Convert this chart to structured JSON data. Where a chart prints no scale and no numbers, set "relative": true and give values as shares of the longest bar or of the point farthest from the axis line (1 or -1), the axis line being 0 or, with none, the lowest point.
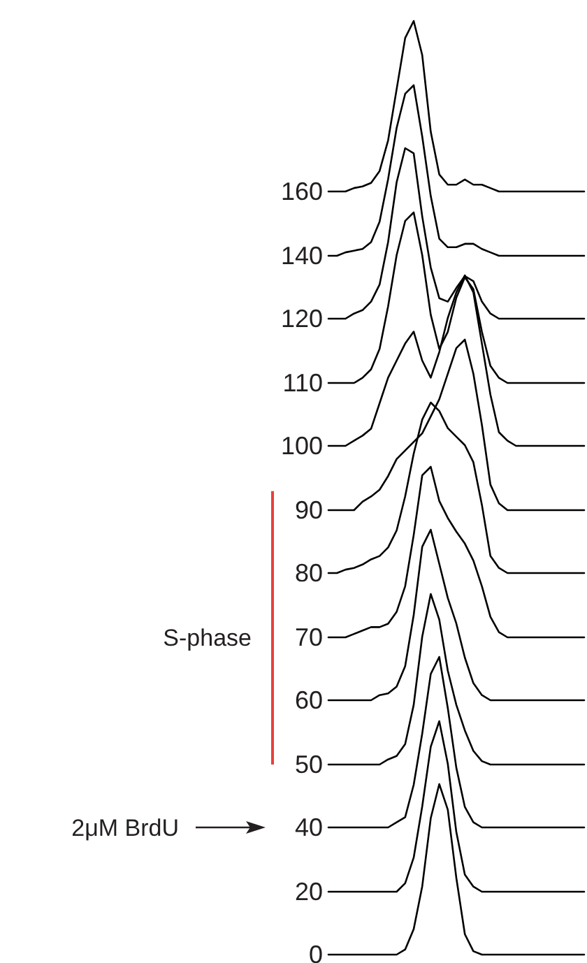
{
  "chart_data": [
    {
      "type": "line",
      "relative": true,
      "color": "#000000",
      "ylabel": "160",
      "categories": [
        null,
        null,
        null,
        null,
        null,
        null,
        null,
        null,
        null,
        null,
        null,
        null,
        null,
        null,
        null,
        null,
        null,
        null,
        null,
        null,
        null,
        null,
        null,
        null,
        null,
        null,
        null,
        null,
        null,
        null,
        null
      ],
      "values": [
        0,
        0,
        0,
        0.02,
        0.03,
        0.05,
        0.12,
        0.3,
        0.6,
        0.9,
        1,
        0.8,
        0.35,
        0.1,
        0.04,
        0.04,
        0.07,
        0.04,
        0.04,
        0.02,
        0,
        0,
        0,
        0,
        0,
        0,
        0,
        0,
        0,
        0,
        0
      ]
    },
    {
      "type": "line",
      "relative": true,
      "color": "#000000",
      "ylabel": "140",
      "categories": [
        null,
        null,
        null,
        null,
        null,
        null,
        null,
        null,
        null,
        null,
        null,
        null,
        null,
        null,
        null,
        null,
        null,
        null,
        null,
        null,
        null,
        null,
        null,
        null,
        null,
        null,
        null,
        null,
        null,
        null,
        null
      ],
      "values": [
        0,
        0,
        0.02,
        0.03,
        0.04,
        0.08,
        0.2,
        0.45,
        0.75,
        0.95,
        1,
        0.7,
        0.35,
        0.1,
        0.05,
        0.05,
        0.07,
        0.07,
        0.04,
        0.02,
        0,
        0,
        0,
        0,
        0,
        0,
        0,
        0,
        0,
        0,
        0
      ]
    },
    {
      "type": "line",
      "relative": true,
      "color": "#000000",
      "ylabel": "120",
      "categories": [
        null,
        null,
        null,
        null,
        null,
        null,
        null,
        null,
        null,
        null,
        null,
        null,
        null,
        null,
        null,
        null,
        null,
        null,
        null,
        null,
        null,
        null,
        null,
        null,
        null,
        null,
        null,
        null,
        null,
        null,
        null
      ],
      "values": [
        0,
        0,
        0,
        0.03,
        0.05,
        0.1,
        0.2,
        0.45,
        0.8,
        1,
        0.97,
        0.6,
        0.3,
        0.12,
        0.1,
        0.18,
        0.25,
        0.22,
        0.1,
        0.03,
        0,
        0,
        0,
        0,
        0,
        0,
        0,
        0,
        0,
        0,
        0
      ]
    },
    {
      "type": "line",
      "relative": true,
      "color": "#000000",
      "ylabel": "110",
      "categories": [
        null,
        null,
        null,
        null,
        null,
        null,
        null,
        null,
        null,
        null,
        null,
        null,
        null,
        null,
        null,
        null,
        null,
        null,
        null,
        null,
        null,
        null,
        null,
        null,
        null,
        null,
        null,
        null,
        null,
        null,
        null
      ],
      "values": [
        0,
        0,
        0,
        0,
        0.03,
        0.08,
        0.2,
        0.45,
        0.75,
        0.95,
        1,
        0.75,
        0.4,
        0.2,
        0.3,
        0.5,
        0.62,
        0.55,
        0.3,
        0.1,
        0.03,
        0,
        0,
        0,
        0,
        0,
        0,
        0,
        0,
        0,
        0
      ]
    },
    {
      "type": "line",
      "relative": true,
      "color": "#000000",
      "ylabel": "100",
      "categories": [
        null,
        null,
        null,
        null,
        null,
        null,
        null,
        null,
        null,
        null,
        null,
        null,
        null,
        null,
        null,
        null,
        null,
        null,
        null,
        null,
        null,
        null,
        null,
        null,
        null,
        null,
        null,
        null,
        null,
        null,
        null
      ],
      "values": [
        0,
        0,
        0,
        0.03,
        0.06,
        0.1,
        0.25,
        0.4,
        0.5,
        0.6,
        0.67,
        0.5,
        0.4,
        0.55,
        0.75,
        0.9,
        1,
        0.9,
        0.6,
        0.3,
        0.08,
        0.03,
        0,
        0,
        0,
        0,
        0,
        0,
        0,
        0,
        0
      ]
    },
    {
      "type": "line",
      "relative": true,
      "color": "#000000",
      "ylabel": "90",
      "categories": [
        null,
        null,
        null,
        null,
        null,
        null,
        null,
        null,
        null,
        null,
        null,
        null,
        null,
        null,
        null,
        null,
        null,
        null,
        null,
        null,
        null,
        null,
        null,
        null,
        null,
        null,
        null,
        null,
        null,
        null,
        null
      ],
      "values": [
        0,
        0,
        0,
        0,
        0.05,
        0.08,
        0.12,
        0.2,
        0.3,
        0.35,
        0.4,
        0.45,
        0.55,
        0.65,
        0.8,
        0.95,
        1,
        0.8,
        0.5,
        0.15,
        0.04,
        0,
        0,
        0,
        0,
        0,
        0,
        0,
        0,
        0,
        0
      ]
    },
    {
      "type": "line",
      "relative": true,
      "color": "#000000",
      "ylabel": "80",
      "categories": [
        null,
        null,
        null,
        null,
        null,
        null,
        null,
        null,
        null,
        null,
        null,
        null,
        null,
        null,
        null,
        null,
        null,
        null,
        null,
        null,
        null,
        null,
        null,
        null,
        null,
        null,
        null,
        null,
        null,
        null,
        null
      ],
      "values": [
        0,
        0,
        0.02,
        0.03,
        0.05,
        0.08,
        0.1,
        0.15,
        0.25,
        0.45,
        0.7,
        0.9,
        1,
        0.95,
        0.85,
        0.8,
        0.75,
        0.65,
        0.4,
        0.1,
        0.03,
        0,
        0,
        0,
        0,
        0,
        0,
        0,
        0,
        0,
        0
      ]
    },
    {
      "type": "line",
      "relative": true,
      "color": "#000000",
      "ylabel": "70",
      "annotations": [
        "S-phase"
      ],
      "categories": [
        null,
        null,
        null,
        null,
        null,
        null,
        null,
        null,
        null,
        null,
        null,
        null,
        null,
        null,
        null,
        null,
        null,
        null,
        null,
        null,
        null,
        null,
        null,
        null,
        null,
        null,
        null,
        null,
        null,
        null,
        null
      ],
      "values": [
        0,
        0,
        0,
        0.02,
        0.04,
        0.06,
        0.06,
        0.08,
        0.15,
        0.3,
        0.6,
        0.95,
        1,
        0.8,
        0.7,
        0.62,
        0.55,
        0.45,
        0.3,
        0.12,
        0.03,
        0,
        0,
        0,
        0,
        0,
        0,
        0,
        0,
        0,
        0
      ]
    },
    {
      "type": "line",
      "relative": true,
      "color": "#000000",
      "ylabel": "60",
      "categories": [
        null,
        null,
        null,
        null,
        null,
        null,
        null,
        null,
        null,
        null,
        null,
        null,
        null,
        null,
        null,
        null,
        null,
        null,
        null,
        null,
        null,
        null,
        null,
        null,
        null,
        null,
        null,
        null,
        null,
        null,
        null
      ],
      "values": [
        0,
        0,
        0,
        0,
        0,
        0,
        0.03,
        0.04,
        0.08,
        0.2,
        0.5,
        0.9,
        1,
        0.8,
        0.6,
        0.45,
        0.25,
        0.1,
        0.03,
        0,
        0,
        0,
        0,
        0,
        0,
        0,
        0,
        0,
        0,
        0,
        0
      ]
    },
    {
      "type": "line",
      "relative": true,
      "color": "#000000",
      "ylabel": "50",
      "categories": [
        null,
        null,
        null,
        null,
        null,
        null,
        null,
        null,
        null,
        null,
        null,
        null,
        null,
        null,
        null,
        null,
        null,
        null,
        null,
        null,
        null,
        null,
        null,
        null,
        null,
        null,
        null,
        null,
        null,
        null,
        null
      ],
      "values": [
        0,
        0,
        0,
        0,
        0,
        0,
        0,
        0.03,
        0.05,
        0.12,
        0.35,
        0.75,
        1,
        0.85,
        0.55,
        0.35,
        0.2,
        0.08,
        0.02,
        0,
        0,
        0,
        0,
        0,
        0,
        0,
        0,
        0,
        0,
        0,
        0
      ]
    },
    {
      "type": "line",
      "relative": true,
      "color": "#000000",
      "ylabel": "40",
      "annotations": [
        "2μM BrdU"
      ],
      "categories": [
        null,
        null,
        null,
        null,
        null,
        null,
        null,
        null,
        null,
        null,
        null,
        null,
        null,
        null,
        null,
        null,
        null,
        null,
        null,
        null,
        null,
        null,
        null,
        null,
        null,
        null,
        null,
        null,
        null,
        null,
        null
      ],
      "values": [
        0,
        0,
        0,
        0,
        0,
        0,
        0,
        0,
        0.03,
        0.06,
        0.25,
        0.55,
        0.9,
        1,
        0.7,
        0.35,
        0.12,
        0.03,
        0,
        0,
        0,
        0,
        0,
        0,
        0,
        0,
        0,
        0,
        0,
        0,
        0
      ]
    },
    {
      "type": "line",
      "relative": true,
      "color": "#000000",
      "ylabel": "20",
      "categories": [
        null,
        null,
        null,
        null,
        null,
        null,
        null,
        null,
        null,
        null,
        null,
        null,
        null,
        null,
        null,
        null,
        null,
        null,
        null,
        null,
        null,
        null,
        null,
        null,
        null,
        null,
        null,
        null,
        null,
        null,
        null
      ],
      "values": [
        0,
        0,
        0,
        0,
        0,
        0,
        0,
        0,
        0,
        0.05,
        0.2,
        0.5,
        0.85,
        1,
        0.75,
        0.35,
        0.1,
        0.03,
        0,
        0,
        0,
        0,
        0,
        0,
        0,
        0,
        0,
        0,
        0,
        0,
        0
      ]
    },
    {
      "type": "line",
      "relative": true,
      "color": "#000000",
      "ylabel": "0",
      "categories": [
        null,
        null,
        null,
        null,
        null,
        null,
        null,
        null,
        null,
        null,
        null,
        null,
        null,
        null,
        null,
        null,
        null,
        null,
        null,
        null,
        null,
        null,
        null,
        null,
        null,
        null,
        null,
        null,
        null,
        null,
        null
      ],
      "values": [
        0,
        0,
        0,
        0,
        0,
        0,
        0,
        0,
        0,
        0.03,
        0.15,
        0.4,
        0.8,
        1,
        0.85,
        0.45,
        0.12,
        0.02,
        0,
        0,
        0,
        0,
        0,
        0,
        0,
        0,
        0,
        0,
        0,
        0,
        0
      ]
    }
  ]
}
